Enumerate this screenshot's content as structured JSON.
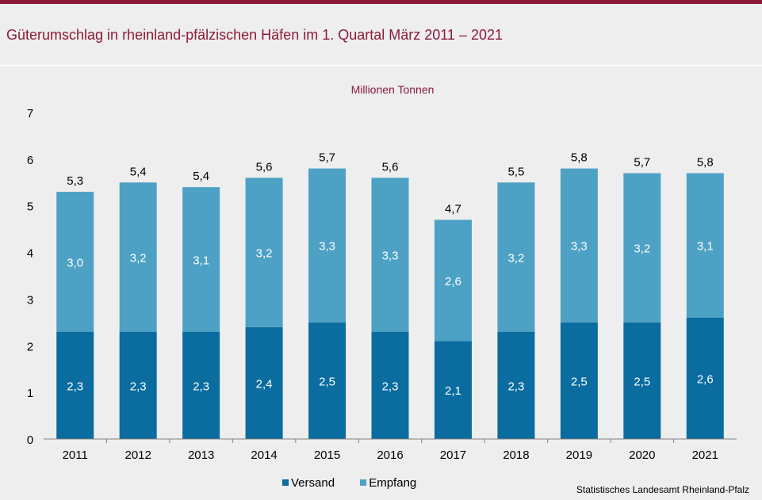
{
  "title": "Güterumschlag in rheinland-pfälzischen Häfen im 1. Quartal März 2011 – 2021",
  "unit_label": "Millionen Tonnen",
  "source": "Statistisches Landesamt Rheinland-Pfalz",
  "colors": {
    "versand": "#0a6c9f",
    "empfang": "#4da1c4",
    "title": "#8b1a3a"
  },
  "chart_data": {
    "type": "bar",
    "stacked": true,
    "categories": [
      "2011",
      "2012",
      "2013",
      "2014",
      "2015",
      "2016",
      "2017",
      "2018",
      "2019",
      "2020",
      "2021"
    ],
    "series": [
      {
        "name": "Versand",
        "values": [
          2.3,
          2.3,
          2.3,
          2.4,
          2.5,
          2.3,
          2.1,
          2.3,
          2.5,
          2.5,
          2.6
        ],
        "labels": [
          "2,3",
          "2,3",
          "2,3",
          "2,4",
          "2,5",
          "2,3",
          "2,1",
          "2,3",
          "2,5",
          "2,5",
          "2,6"
        ]
      },
      {
        "name": "Empfang",
        "values": [
          3.0,
          3.2,
          3.1,
          3.2,
          3.3,
          3.3,
          2.6,
          3.2,
          3.3,
          3.2,
          3.1
        ],
        "labels": [
          "3,0",
          "3,2",
          "3,1",
          "3,2",
          "3,3",
          "3,3",
          "2,6",
          "3,2",
          "3,3",
          "3,2",
          "3,1"
        ]
      }
    ],
    "totals": [
      5.3,
      5.4,
      5.4,
      5.6,
      5.7,
      5.6,
      4.7,
      5.5,
      5.8,
      5.7,
      5.8
    ],
    "total_labels": [
      "5,3",
      "5,4",
      "5,4",
      "5,6",
      "5,7",
      "5,6",
      "4,7",
      "5,5",
      "5,8",
      "5,7",
      "5,8"
    ],
    "ylim": [
      0,
      7
    ],
    "yticks": [
      "0",
      "1",
      "2",
      "3",
      "4",
      "5",
      "6",
      "7"
    ],
    "legend_position": "bottom",
    "grid": false
  }
}
